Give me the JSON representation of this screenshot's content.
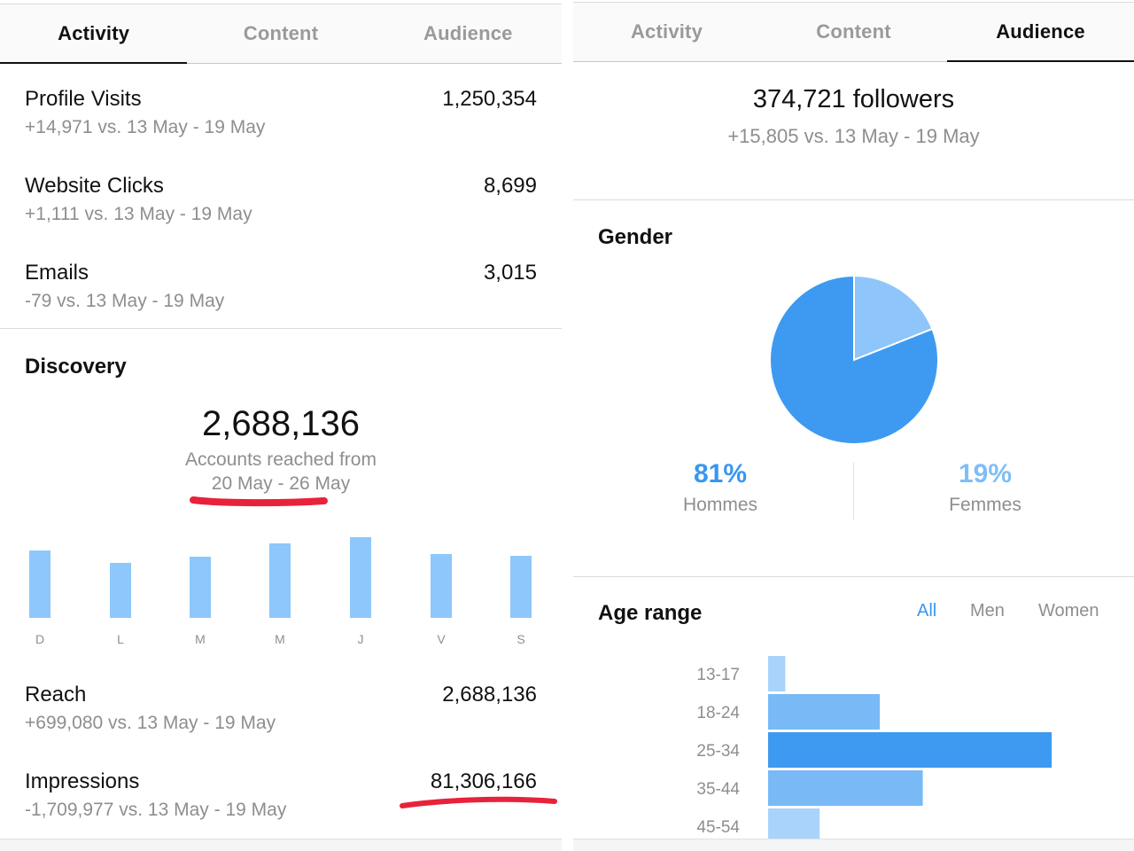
{
  "left": {
    "tabs": [
      {
        "label": "Activity",
        "active": true
      },
      {
        "label": "Content",
        "active": false
      },
      {
        "label": "Audience",
        "active": false
      }
    ],
    "interactions": [
      {
        "label": "Profile Visits",
        "value": "1,250,354",
        "delta": "+14,971 vs. 13 May - 19 May"
      },
      {
        "label": "Website Clicks",
        "value": "8,699",
        "delta": "+1,111 vs. 13 May - 19 May"
      },
      {
        "label": "Emails",
        "value": "3,015",
        "delta": "-79 vs. 13 May - 19 May"
      }
    ],
    "discovery": {
      "title": "Discovery",
      "accounts_reached": "2,688,136",
      "caption": "Accounts reached from",
      "range": "20 May - 26 May"
    },
    "reach": {
      "label": "Reach",
      "value": "2,688,136",
      "delta": "+699,080 vs. 13 May - 19 May"
    },
    "impressions": {
      "label": "Impressions",
      "value": "81,306,166",
      "delta": "-1,709,977 vs. 13 May - 19 May"
    }
  },
  "right": {
    "tabs": [
      {
        "label": "Activity",
        "active": false
      },
      {
        "label": "Content",
        "active": false
      },
      {
        "label": "Audience",
        "active": true
      }
    ],
    "followers": {
      "count": "374,721 followers",
      "delta": "+15,805 vs. 13 May - 19 May"
    },
    "gender": {
      "title": "Gender",
      "men_pct": "81%",
      "men_label": "Hommes",
      "women_pct": "19%",
      "women_label": "Femmes"
    },
    "age": {
      "title": "Age range",
      "filters": [
        "All",
        "Men",
        "Women"
      ],
      "active_filter": "All"
    }
  },
  "colors": {
    "accent": "#3897f0",
    "bar_light": "#8ec7fb",
    "pie_main": "#3d9af0",
    "pie_light": "#8ec5fa",
    "women_text": "#7fbef7",
    "red_marker": "#e8223a"
  },
  "chart_data": [
    {
      "type": "bar",
      "categories": [
        "D",
        "L",
        "M",
        "M",
        "J",
        "V",
        "S"
      ],
      "values": [
        76,
        62,
        69,
        84,
        91,
        72,
        70
      ]
    },
    {
      "type": "pie",
      "categories": [
        "Hommes",
        "Femmes"
      ],
      "values": [
        81,
        19
      ]
    },
    {
      "type": "bar",
      "orientation": "horizontal",
      "categories": [
        "13-17",
        "18-24",
        "25-34",
        "35-44",
        "45-54"
      ],
      "values": [
        2,
        13,
        33,
        18,
        6
      ]
    }
  ]
}
